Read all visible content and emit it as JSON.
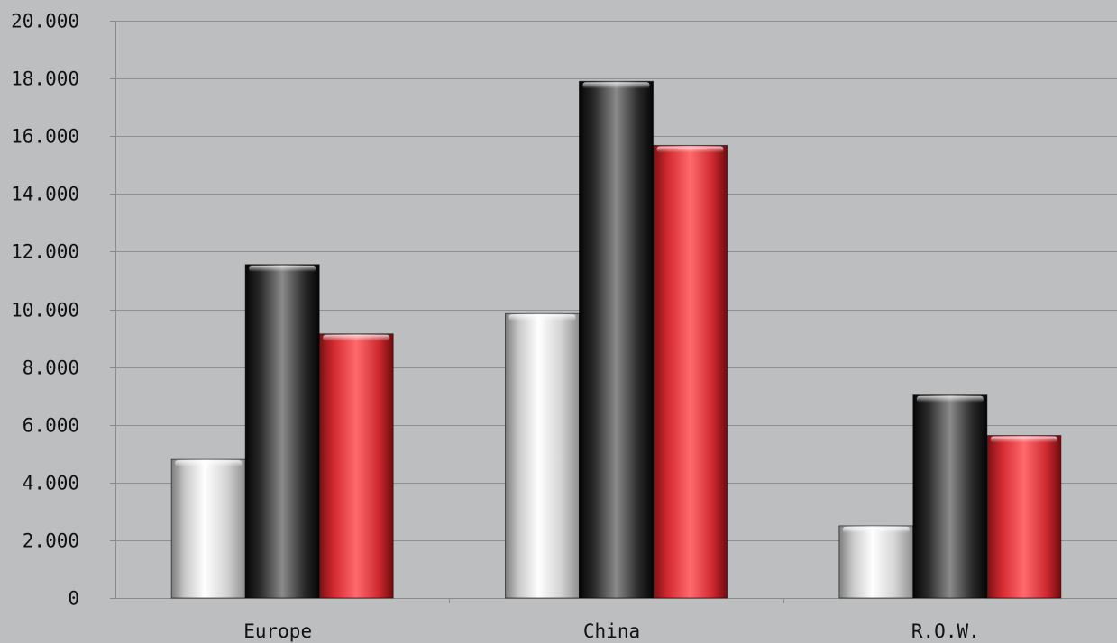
{
  "chart_data": {
    "type": "bar",
    "title": "",
    "xlabel": "",
    "ylabel": "",
    "categories": [
      "Europe",
      "China",
      "R.O.W."
    ],
    "series": [
      {
        "color": "#e6e6e6",
        "values": [
          4800,
          9850,
          2500
        ]
      },
      {
        "color": "#2e2e2e",
        "values": [
          11550,
          17900,
          7030
        ]
      },
      {
        "color": "#e0343a",
        "values": [
          9150,
          15680,
          5630
        ]
      }
    ],
    "ylim": [
      0,
      20000
    ],
    "yticks": [
      0,
      2000,
      4000,
      6000,
      8000,
      10000,
      12000,
      14000,
      16000,
      18000,
      20000
    ],
    "ytick_labels": [
      "0",
      "2.000",
      "4.000",
      "6.000",
      "8.000",
      "10.000",
      "12.000",
      "14.000",
      "16.000",
      "18.000",
      "20.000"
    ],
    "grid": true,
    "legend": "none"
  }
}
